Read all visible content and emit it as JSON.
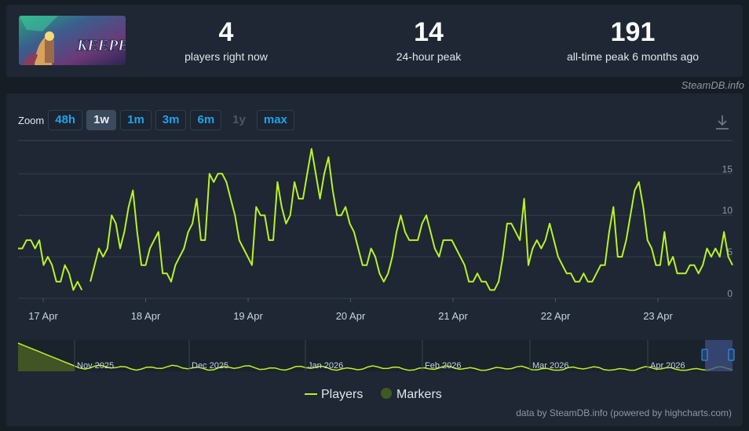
{
  "stats": {
    "current": {
      "value": "4",
      "label": "players right now"
    },
    "peak24": {
      "value": "14",
      "label": "24-hour peak"
    },
    "alltime": {
      "value": "191",
      "label": "all-time peak 6 months ago"
    }
  },
  "game_art_text": "KEEPER",
  "attribution": "SteamDB.info",
  "zoom": {
    "label": "Zoom",
    "buttons": [
      {
        "label": "48h",
        "state": "normal"
      },
      {
        "label": "1w",
        "state": "active"
      },
      {
        "label": "1m",
        "state": "normal"
      },
      {
        "label": "3m",
        "state": "normal"
      },
      {
        "label": "6m",
        "state": "normal"
      },
      {
        "label": "1y",
        "state": "disabled"
      },
      {
        "label": "max",
        "state": "normal"
      }
    ]
  },
  "legend": {
    "players": "Players",
    "markers": "Markers"
  },
  "footer": "data by SteamDB.info (powered by highcharts.com)",
  "colors": {
    "line": "#b9f227",
    "navigator_fill": "#4f6620",
    "markers": "#3d5a22",
    "selection": "#3f4f86"
  },
  "icons": {
    "download": "download-icon"
  },
  "chart_data": {
    "type": "line",
    "series": [
      {
        "name": "Players"
      }
    ],
    "ylim": [
      0,
      19
    ],
    "yticks": [
      0,
      5,
      10,
      15
    ],
    "x_tick_labels": [
      "17 Apr",
      "18 Apr",
      "19 Apr",
      "20 Apr",
      "21 Apr",
      "22 Apr",
      "23 Apr"
    ],
    "values": [
      6,
      6,
      7,
      7,
      6,
      7,
      4,
      5,
      4,
      2,
      2,
      4,
      3,
      1,
      2,
      1,
      null,
      2,
      4,
      6,
      5,
      6,
      10,
      9,
      6,
      8,
      11,
      13,
      8,
      4,
      4,
      6,
      7,
      8,
      3,
      3,
      2,
      4,
      5,
      6,
      8,
      9,
      12,
      7,
      7,
      15,
      14,
      15,
      15,
      14,
      12,
      10,
      7,
      6,
      5,
      4,
      11,
      10,
      10,
      7,
      7,
      14,
      11,
      9,
      10,
      14,
      12,
      12,
      15,
      18,
      15,
      12,
      15,
      17,
      13,
      10,
      10,
      11,
      9,
      8,
      6,
      4,
      4,
      6,
      5,
      3,
      2,
      3,
      5,
      8,
      10,
      8,
      7,
      7,
      7,
      9,
      10,
      8,
      6,
      5,
      7,
      7,
      7,
      6,
      5,
      4,
      2,
      2,
      3,
      2,
      2,
      1,
      1,
      2,
      5,
      9,
      9,
      8,
      7,
      12,
      4,
      6,
      7,
      6,
      7,
      9,
      7,
      5,
      4,
      3,
      3,
      2,
      2,
      3,
      2,
      2,
      3,
      4,
      4,
      8,
      11,
      5,
      5,
      7,
      10,
      13,
      14,
      11,
      7,
      6,
      4,
      4,
      8,
      4,
      5,
      3,
      3,
      3,
      4,
      4,
      3,
      4,
      6,
      5,
      6,
      5,
      8,
      5,
      4
    ],
    "navigator": {
      "x_labels": [
        "Nov 2025",
        "Dec 2025",
        "Jan 2026",
        "Feb 2026",
        "Mar 2026",
        "Apr 2026"
      ]
    }
  }
}
